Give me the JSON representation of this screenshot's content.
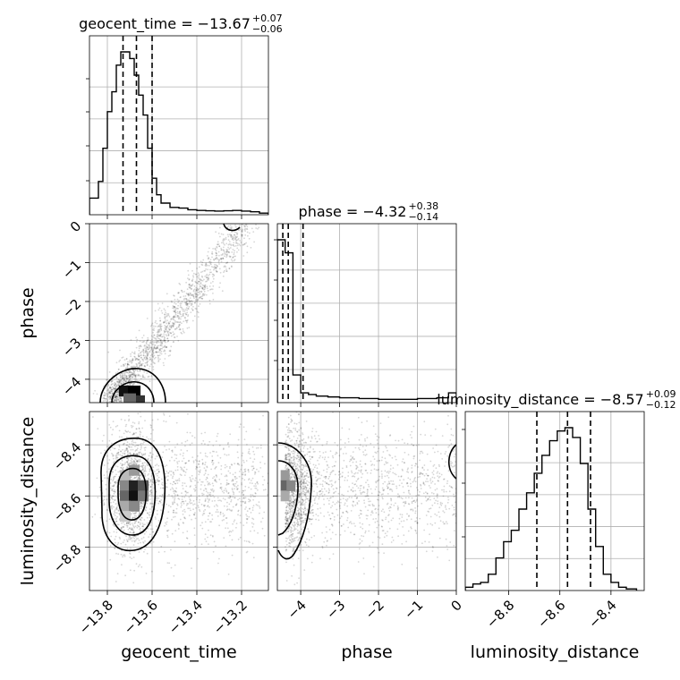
{
  "chart_data": {
    "type": "corner",
    "parameters": [
      {
        "key": "geocent_time",
        "label": "geocent_time",
        "range": [
          -13.88,
          -13.08
        ]
      },
      {
        "key": "phase",
        "label": "phase",
        "range": [
          -4.6,
          0
        ]
      },
      {
        "key": "luminosity_distance",
        "label": "luminosity_distance",
        "range": [
          -8.97,
          -8.27
        ]
      }
    ],
    "titles": [
      {
        "main": "geocent_time = −13.67",
        "sup": "+0.07",
        "sub": "−0.06"
      },
      {
        "main": "phase = −4.32",
        "sup": "+0.38",
        "sub": "−0.14"
      },
      {
        "main": "luminosity_distance = −8.57",
        "sup": "+0.09",
        "sub": "−0.12"
      }
    ],
    "x_ticks": {
      "geocent_time": {
        "values": [
          -13.8,
          -13.6,
          -13.4,
          -13.2
        ],
        "labels": [
          "−13.8",
          "−13.6",
          "−13.4",
          "−13.2"
        ]
      },
      "phase": {
        "values": [
          -4,
          -3,
          -2,
          -1,
          0
        ],
        "labels": [
          "−4",
          "−3",
          "−2",
          "−1",
          "0"
        ]
      },
      "luminosity_distance": {
        "values": [
          -8.8,
          -8.6,
          -8.4
        ],
        "labels": [
          "−8.8",
          "−8.6",
          "−8.4"
        ]
      }
    },
    "y_ticks": {
      "phase": {
        "values": [
          0,
          -1,
          -2,
          -3,
          -4
        ],
        "labels": [
          "0",
          "−1",
          "−2",
          "−3",
          "−4"
        ]
      },
      "luminosity_distance": {
        "values": [
          -8.4,
          -8.6,
          -8.8
        ],
        "labels": [
          "−8.4",
          "−8.6",
          "−8.8"
        ]
      }
    },
    "histograms": [
      {
        "parameter": "geocent_time",
        "bin_edges": [
          -13.88,
          -13.84,
          -13.82,
          -13.8,
          -13.78,
          -13.76,
          -13.74,
          -13.72,
          -13.7,
          -13.68,
          -13.66,
          -13.64,
          -13.62,
          -13.6,
          -13.58,
          -13.56,
          -13.52,
          -13.48,
          -13.44,
          -13.4,
          -13.36,
          -13.32,
          -13.28,
          -13.24,
          -13.2,
          -13.16,
          -13.12,
          -13.08
        ],
        "counts": [
          0.5,
          1.0,
          2.0,
          3.1,
          3.7,
          4.5,
          4.9,
          4.9,
          4.7,
          4.2,
          3.6,
          3.0,
          2.0,
          1.1,
          0.6,
          0.35,
          0.22,
          0.2,
          0.15,
          0.13,
          0.12,
          0.11,
          0.12,
          0.13,
          0.11,
          0.09,
          0.05
        ],
        "quantiles": [
          -13.73,
          -13.67,
          -13.6
        ]
      },
      {
        "parameter": "phase",
        "bin_edges": [
          -4.6,
          -4.4,
          -4.2,
          -4.0,
          -3.8,
          -3.6,
          -3.3,
          -3.0,
          -2.5,
          -2.0,
          -1.5,
          -1.0,
          -0.5,
          -0.2,
          0
        ],
        "counts": [
          1.0,
          0.92,
          0.17,
          0.06,
          0.05,
          0.04,
          0.035,
          0.03,
          0.025,
          0.02,
          0.02,
          0.025,
          0.03,
          0.06
        ],
        "quantiles": [
          -4.46,
          -4.32,
          -3.94
        ]
      },
      {
        "parameter": "luminosity_distance",
        "bin_edges": [
          -8.97,
          -8.94,
          -8.91,
          -8.88,
          -8.85,
          -8.82,
          -8.79,
          -8.76,
          -8.73,
          -8.7,
          -8.67,
          -8.64,
          -8.61,
          -8.58,
          -8.55,
          -8.52,
          -8.49,
          -8.46,
          -8.43,
          -8.4,
          -8.37,
          -8.34,
          -8.3
        ],
        "counts": [
          0.02,
          0.04,
          0.05,
          0.1,
          0.2,
          0.3,
          0.37,
          0.5,
          0.6,
          0.72,
          0.83,
          0.92,
          0.98,
          1.0,
          0.94,
          0.78,
          0.5,
          0.27,
          0.1,
          0.05,
          0.02,
          0.01
        ],
        "quantiles": [
          -8.69,
          -8.57,
          -8.48
        ]
      }
    ],
    "scatter_2d": [
      {
        "x": "geocent_time",
        "y": "phase",
        "trend": "positive, near-linear from (-13.75, -4.6) to (-13.2, 0)",
        "density_peak": [
          -13.7,
          -4.4
        ]
      },
      {
        "x": "geocent_time",
        "y": "luminosity_distance",
        "density_peak": [
          -13.7,
          -8.57
        ]
      },
      {
        "x": "phase",
        "y": "luminosity_distance",
        "density_peak": [
          -4.35,
          -8.57
        ]
      }
    ],
    "grid": true
  }
}
